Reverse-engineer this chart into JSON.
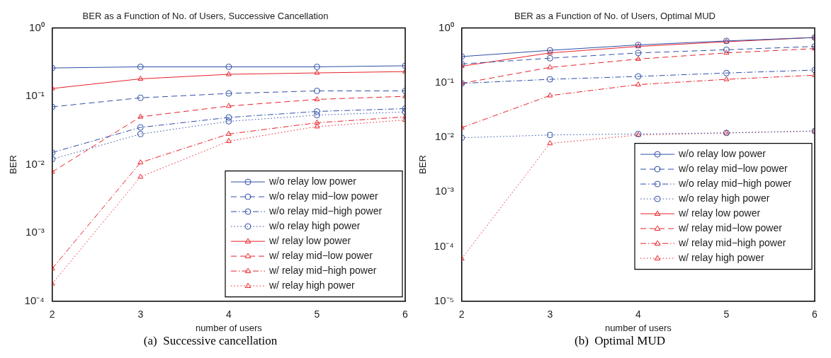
{
  "chart_data": [
    {
      "type": "line",
      "title": "BER as a Function of No. of Users, Successive Cancellation",
      "xlabel": "number of users",
      "ylabel": "BER",
      "x": [
        2,
        3,
        4,
        5,
        6
      ],
      "xlim": [
        2,
        6
      ],
      "xticks": [
        2,
        3,
        4,
        5,
        6
      ],
      "log": "y",
      "ylim": [
        0.0001,
        1
      ],
      "yticks": [
        {
          "value": 0.0001,
          "label": "10⁻⁴"
        },
        {
          "value": 0.001,
          "label": "10⁻³"
        },
        {
          "value": 0.01,
          "label": "10⁻²"
        },
        {
          "value": 0.1,
          "label": "10⁻¹"
        },
        {
          "value": 1,
          "label": "10⁰"
        }
      ],
      "grid": false,
      "legend": "bottom right",
      "annotations": [
        "(a)  Successive cancellation"
      ],
      "series": [
        {
          "name": "w/o relay low power",
          "color": "#2f4fa8",
          "marker": "circle",
          "line_style": "solid",
          "values": [
            0.26,
            0.27,
            0.27,
            0.27,
            0.28
          ]
        },
        {
          "name": "w/o relay mid−low power",
          "color": "#2f4fa8",
          "marker": "circle",
          "line_style": "dashed",
          "values": [
            0.07,
            0.095,
            0.11,
            0.12,
            0.12
          ]
        },
        {
          "name": "w/o relay mid−high power",
          "color": "#2f4fa8",
          "marker": "circle",
          "line_style": "dashdot",
          "values": [
            0.015,
            0.035,
            0.049,
            0.06,
            0.066
          ]
        },
        {
          "name": "w/o relay high power",
          "color": "#2f4fa8",
          "marker": "circle",
          "line_style": "dotted",
          "values": [
            0.012,
            0.028,
            0.043,
            0.053,
            0.059
          ]
        },
        {
          "name": "w/ relay low power",
          "color": "#e8222a",
          "marker": "triangle",
          "line_style": "solid",
          "values": [
            0.13,
            0.18,
            0.21,
            0.22,
            0.23
          ]
        },
        {
          "name": "w/ relay mid−low power",
          "color": "#e8222a",
          "marker": "triangle",
          "line_style": "dashed",
          "values": [
            0.0078,
            0.05,
            0.072,
            0.09,
            0.1
          ]
        },
        {
          "name": "w/ relay mid−high power",
          "color": "#e8222a",
          "marker": "triangle",
          "line_style": "dashdot",
          "values": [
            0.0003,
            0.0107,
            0.028,
            0.041,
            0.05
          ]
        },
        {
          "name": "w/ relay high power",
          "color": "#e8222a",
          "marker": "triangle",
          "line_style": "dotted",
          "values": [
            0.00018,
            0.0066,
            0.022,
            0.036,
            0.045
          ]
        }
      ]
    },
    {
      "type": "line",
      "title": "BER as a Function of No. of Users, Optimal MUD",
      "xlabel": "number of users",
      "ylabel": "BER",
      "x": [
        2,
        3,
        4,
        5,
        6
      ],
      "xlim": [
        2,
        6
      ],
      "xticks": [
        2,
        3,
        4,
        5,
        6
      ],
      "log": "y",
      "ylim": [
        1e-05,
        1
      ],
      "yticks": [
        {
          "value": 1e-05,
          "label": "10⁻⁵"
        },
        {
          "value": 0.0001,
          "label": "10⁻⁴"
        },
        {
          "value": 0.001,
          "label": "10⁻³"
        },
        {
          "value": 0.01,
          "label": "10⁻²"
        },
        {
          "value": 0.1,
          "label": "10⁻¹"
        },
        {
          "value": 1,
          "label": "10⁰"
        }
      ],
      "grid": false,
      "legend": "lower right",
      "annotations": [
        "(b)  Optimal MUD"
      ],
      "series": [
        {
          "name": "w/o relay low power",
          "color": "#2f4fa8",
          "marker": "circle",
          "line_style": "solid",
          "values": [
            0.3,
            0.39,
            0.49,
            0.58,
            0.67
          ]
        },
        {
          "name": "w/o relay mid−low power",
          "color": "#2f4fa8",
          "marker": "circle",
          "line_style": "dashed",
          "values": [
            0.22,
            0.28,
            0.35,
            0.4,
            0.46
          ]
        },
        {
          "name": "w/o relay mid−high power",
          "color": "#2f4fa8",
          "marker": "circle",
          "line_style": "dashdot",
          "values": [
            0.097,
            0.115,
            0.13,
            0.15,
            0.17
          ]
        },
        {
          "name": "w/o relay high power",
          "color": "#2f4fa8",
          "marker": "circle",
          "line_style": "dotted",
          "values": [
            0.0098,
            0.011,
            0.0115,
            0.012,
            0.013
          ]
        },
        {
          "name": "w/ relay low power",
          "color": "#e8222a",
          "marker": "triangle",
          "line_style": "solid",
          "values": [
            0.2,
            0.35,
            0.46,
            0.56,
            0.67
          ]
        },
        {
          "name": "w/ relay mid−low power",
          "color": "#e8222a",
          "marker": "triangle",
          "line_style": "dashed",
          "values": [
            0.097,
            0.19,
            0.27,
            0.35,
            0.42
          ]
        },
        {
          "name": "w/ relay mid−high power",
          "color": "#e8222a",
          "marker": "triangle",
          "line_style": "dashdot",
          "values": [
            0.015,
            0.058,
            0.092,
            0.115,
            0.137
          ]
        },
        {
          "name": "w/ relay high power",
          "color": "#e8222a",
          "marker": "triangle",
          "line_style": "dotted",
          "values": [
            6e-05,
            0.0077,
            0.011,
            0.012,
            0.013
          ]
        }
      ]
    }
  ]
}
